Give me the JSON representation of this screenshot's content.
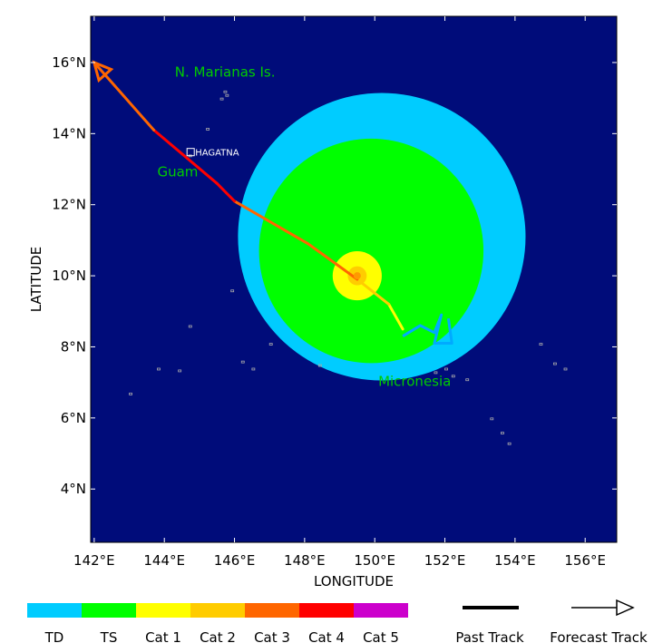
{
  "map": {
    "bounds": {
      "lon": [
        141.9,
        156.9
      ],
      "lat": [
        2.5,
        17.3
      ]
    },
    "colors": {
      "ocean": "#000c7a",
      "TD": "#00ccff",
      "TS": "#00ff00",
      "Cat 1": "#ffff00",
      "Cat 2": "#ffcc00",
      "Cat 3": "#ff6600",
      "Cat 4": "#ff0000",
      "Cat 5": "#cc00cc",
      "storm_core": "#ff9900",
      "land": "#aaaaaa"
    },
    "xaxis": {
      "title": "LONGITUDE",
      "ticks": [
        {
          "value": 142,
          "label": "142°E"
        },
        {
          "value": 144,
          "label": "144°E"
        },
        {
          "value": 146,
          "label": "146°E"
        },
        {
          "value": 148,
          "label": "148°E"
        },
        {
          "value": 150,
          "label": "150°E"
        },
        {
          "value": 152,
          "label": "152°E"
        },
        {
          "value": 154,
          "label": "154°E"
        },
        {
          "value": 156,
          "label": "156°E"
        }
      ]
    },
    "yaxis": {
      "title": "LATITUDE",
      "ticks": [
        {
          "value": 4,
          "label": "4°N"
        },
        {
          "value": 6,
          "label": "6°N"
        },
        {
          "value": 8,
          "label": "8°N"
        },
        {
          "value": 10,
          "label": "10°N"
        },
        {
          "value": 12,
          "label": "12°N"
        },
        {
          "value": 14,
          "label": "14°N"
        },
        {
          "value": 16,
          "label": "16°N"
        }
      ]
    },
    "wind_radii": [
      {
        "category": "TD",
        "lon": 150.2,
        "lat": 11.1,
        "radius_deg": 4.1
      },
      {
        "category": "TS",
        "lon": 149.9,
        "lat": 10.7,
        "radius_deg": 3.2
      },
      {
        "category": "Cat 1",
        "lon": 149.5,
        "lat": 10.0,
        "radius_deg": 0.7
      },
      {
        "category": "Cat 2",
        "lon": 149.5,
        "lat": 10.0,
        "radius_deg": 0.27
      }
    ],
    "forecast_track": [
      {
        "lon": 150.8,
        "lat": 8.5,
        "category": "Cat 1"
      },
      {
        "lon": 150.4,
        "lat": 9.2,
        "category": "Cat 1"
      },
      {
        "lon": 149.5,
        "lat": 9.9,
        "category": "Cat 2"
      },
      {
        "lon": 148.1,
        "lat": 10.9,
        "category": "Cat 3"
      },
      {
        "lon": 146.0,
        "lat": 12.1,
        "category": "Cat 3"
      },
      {
        "lon": 145.5,
        "lat": 12.6,
        "category": "Cat 4"
      },
      {
        "lon": 143.7,
        "lat": 14.1,
        "category": "Cat 4"
      },
      {
        "lon": 142.0,
        "lat": 16.0,
        "category": "Cat 3"
      }
    ],
    "past_track": [
      {
        "lon": 150.8,
        "lat": 8.3
      },
      {
        "lon": 151.3,
        "lat": 8.6
      },
      {
        "lon": 151.7,
        "lat": 8.4
      },
      {
        "lon": 151.9,
        "lat": 8.9
      },
      {
        "lon": 151.7,
        "lat": 8.1
      },
      {
        "lon": 152.2,
        "lat": 8.1
      },
      {
        "lon": 152.1,
        "lat": 8.8
      }
    ],
    "past_track_color": "#00aaff",
    "labels": [
      {
        "text": "N. Marianas Is.",
        "lon": 144.3,
        "lat": 15.6,
        "color": "#00cc00"
      },
      {
        "text": "Guam",
        "lon": 143.8,
        "lat": 12.8,
        "color": "#00cc00"
      },
      {
        "text": "Micronesia",
        "lon": 150.1,
        "lat": 6.9,
        "color": "#00cc00"
      }
    ],
    "city": {
      "text": "HAGATNA",
      "lon": 144.75,
      "lat": 13.48
    },
    "islands": [
      {
        "lon": 145.7,
        "lat": 15.2
      },
      {
        "lon": 145.6,
        "lat": 15.0
      },
      {
        "lon": 145.2,
        "lat": 14.15
      },
      {
        "lon": 144.7,
        "lat": 13.4
      },
      {
        "lon": 145.75,
        "lat": 15.1
      },
      {
        "lon": 147.0,
        "lat": 8.1
      },
      {
        "lon": 148.4,
        "lat": 7.5
      },
      {
        "lon": 146.5,
        "lat": 7.4
      },
      {
        "lon": 146.2,
        "lat": 7.6
      },
      {
        "lon": 143.8,
        "lat": 7.4
      },
      {
        "lon": 144.4,
        "lat": 7.35
      },
      {
        "lon": 144.7,
        "lat": 8.6
      },
      {
        "lon": 145.9,
        "lat": 9.6
      },
      {
        "lon": 143.0,
        "lat": 6.7
      },
      {
        "lon": 152.0,
        "lat": 7.4
      },
      {
        "lon": 152.2,
        "lat": 7.2
      },
      {
        "lon": 152.6,
        "lat": 7.1
      },
      {
        "lon": 153.3,
        "lat": 6.0
      },
      {
        "lon": 153.6,
        "lat": 5.6
      },
      {
        "lon": 153.8,
        "lat": 5.3
      },
      {
        "lon": 155.1,
        "lat": 7.55
      },
      {
        "lon": 155.4,
        "lat": 7.4
      },
      {
        "lon": 154.7,
        "lat": 8.1
      },
      {
        "lon": 151.7,
        "lat": 7.3
      }
    ]
  },
  "legend": {
    "categories": [
      "TD",
      "TS",
      "Cat 1",
      "Cat 2",
      "Cat 3",
      "Cat 4",
      "Cat 5"
    ],
    "past_track_label": "Past Track",
    "forecast_track_label": "Forecast Track"
  }
}
